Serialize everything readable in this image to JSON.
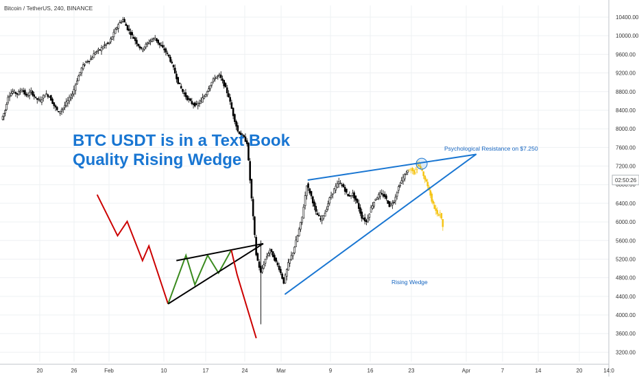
{
  "chart_data": {
    "type": "candlestick",
    "symbol_line": "Bitcoin / TetherUS, 240, BINANCE",
    "headline": [
      "BTC USDT is in a Text Book",
      "Quality Rising Wedge"
    ],
    "price_axis_ticks": [
      "10400.00",
      "10000.00",
      "9600.00",
      "9200.00",
      "8800.00",
      "8400.00",
      "8000.00",
      "7600.00",
      "7200.00",
      "6800.00",
      "6400.00",
      "6000.00",
      "5600.00",
      "5200.00",
      "4800.00",
      "4400.00",
      "4000.00",
      "3600.00",
      "3200.00"
    ],
    "current_price_label": "02:50:26",
    "ylim": [
      3000,
      10650
    ],
    "time_axis_ticks": [
      "20",
      "26",
      "Feb",
      "10",
      "17",
      "24",
      "Mar",
      "9",
      "16",
      "23",
      "Apr",
      "7",
      "14",
      "20",
      "14:0"
    ],
    "annotations": {
      "resistance": "Psychological Resistance on $7.250",
      "wedge": "Rising Wedge"
    },
    "colors": {
      "candle": "#000000",
      "projection": "#f5c518",
      "wedge_line": "#1976d2",
      "headline": "#1976d2",
      "schematic_down": "#cc0000",
      "schematic_zigzag": "#3a8a1e",
      "schematic_lines": "#000000",
      "grid": "#eef0f3"
    },
    "price_path": [
      [
        0,
        8200
      ],
      [
        0.8,
        8400
      ],
      [
        1.5,
        8700
      ],
      [
        2.5,
        8800
      ],
      [
        3.5,
        8750
      ],
      [
        4.5,
        8850
      ],
      [
        5.5,
        8700
      ],
      [
        6.5,
        8800
      ],
      [
        7.5,
        8650
      ],
      [
        8.5,
        8600
      ],
      [
        9.5,
        8750
      ],
      [
        10.5,
        8700
      ],
      [
        11.5,
        8500
      ],
      [
        12.5,
        8350
      ],
      [
        13.5,
        8450
      ],
      [
        14.5,
        8600
      ],
      [
        15.5,
        8750
      ],
      [
        16.5,
        9050
      ],
      [
        17.5,
        9300
      ],
      [
        18.5,
        9450
      ],
      [
        19.5,
        9500
      ],
      [
        20.5,
        9650
      ],
      [
        21.5,
        9700
      ],
      [
        22.5,
        9800
      ],
      [
        23.5,
        9850
      ],
      [
        24.5,
        10050
      ],
      [
        25.5,
        10250
      ],
      [
        26.5,
        10350
      ],
      [
        27.5,
        10150
      ],
      [
        28.5,
        10000
      ],
      [
        29.5,
        9850
      ],
      [
        30.5,
        9700
      ],
      [
        31.5,
        9800
      ],
      [
        32.5,
        9900
      ],
      [
        33.5,
        9950
      ],
      [
        34.5,
        9800
      ],
      [
        35.5,
        9700
      ],
      [
        36.5,
        9550
      ],
      [
        37.5,
        9300
      ],
      [
        38.5,
        9000
      ],
      [
        39.5,
        8800
      ],
      [
        40.5,
        8650
      ],
      [
        41.5,
        8550
      ],
      [
        42.5,
        8500
      ],
      [
        43.5,
        8600
      ],
      [
        44.5,
        8750
      ],
      [
        45.5,
        8950
      ],
      [
        46.5,
        9100
      ],
      [
        47.5,
        9150
      ],
      [
        48.5,
        8950
      ],
      [
        49.5,
        8700
      ],
      [
        50.5,
        8300
      ],
      [
        51.5,
        7950
      ],
      [
        52.5,
        7850
      ],
      [
        53.5,
        7700
      ],
      [
        54.5,
        6500
      ],
      [
        55.5,
        5300
      ],
      [
        56.5,
        4900
      ],
      [
        57.5,
        5200
      ],
      [
        58.5,
        5400
      ],
      [
        59.5,
        5200
      ],
      [
        60.5,
        5000
      ],
      [
        61.5,
        4700
      ],
      [
        62.5,
        5100
      ],
      [
        63.5,
        5350
      ],
      [
        64.5,
        5700
      ],
      [
        65.5,
        6100
      ],
      [
        66.5,
        6800
      ],
      [
        67.5,
        6550
      ],
      [
        68.5,
        6200
      ],
      [
        69.5,
        6050
      ],
      [
        70.5,
        6200
      ],
      [
        71.5,
        6500
      ],
      [
        72.5,
        6700
      ],
      [
        73.5,
        6850
      ],
      [
        74.5,
        6750
      ],
      [
        75.5,
        6550
      ],
      [
        76.5,
        6600
      ],
      [
        77.5,
        6400
      ],
      [
        78.5,
        6100
      ],
      [
        79.5,
        6000
      ],
      [
        80.5,
        6300
      ],
      [
        81.5,
        6500
      ],
      [
        82.5,
        6600
      ],
      [
        83.5,
        6550
      ],
      [
        84.5,
        6350
      ],
      [
        85.5,
        6450
      ],
      [
        86.5,
        6750
      ],
      [
        87.5,
        6950
      ],
      [
        88.5,
        7100
      ]
    ],
    "projection_path": [
      [
        88.5,
        7100
      ],
      [
        89.2,
        7150
      ],
      [
        89.9,
        7050
      ],
      [
        90.6,
        7250
      ],
      [
        91.3,
        7150
      ],
      [
        91.9,
        7000
      ],
      [
        92.5,
        6850
      ],
      [
        93.1,
        6700
      ],
      [
        93.7,
        6450
      ],
      [
        94.3,
        6300
      ],
      [
        94.9,
        6150
      ],
      [
        95.5,
        6200
      ],
      [
        96.1,
        5900
      ]
    ],
    "wedge_upper": [
      [
        66.5,
        6900
      ],
      [
        103,
        7450
      ]
    ],
    "wedge_lower": [
      [
        61.5,
        4450
      ],
      [
        103,
        7450
      ]
    ],
    "resistance_circle": [
      91.2,
      7250
    ],
    "schematic": {
      "drop": [
        [
          0.152,
          0.517
        ],
        [
          0.184,
          0.626
        ],
        [
          0.199,
          0.588
        ],
        [
          0.223,
          0.692
        ],
        [
          0.233,
          0.653
        ],
        [
          0.263,
          0.807
        ]
      ],
      "zigzag": [
        [
          0.263,
          0.807
        ],
        [
          0.291,
          0.678
        ],
        [
          0.305,
          0.756
        ],
        [
          0.325,
          0.678
        ],
        [
          0.342,
          0.725
        ],
        [
          0.362,
          0.664
        ]
      ],
      "upper": [
        [
          0.276,
          0.692
        ],
        [
          0.412,
          0.647
        ]
      ],
      "lower": [
        [
          0.263,
          0.807
        ],
        [
          0.412,
          0.647
        ]
      ],
      "collapse": [
        [
          0.362,
          0.664
        ],
        [
          0.371,
          0.729
        ],
        [
          0.401,
          0.898
        ]
      ]
    }
  }
}
